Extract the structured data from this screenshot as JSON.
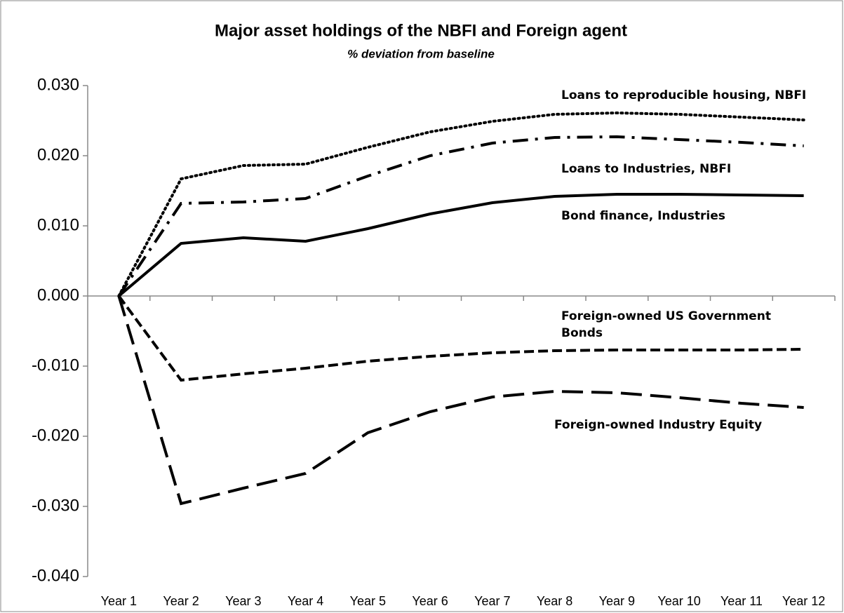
{
  "chart_data": {
    "type": "line",
    "title": "Major asset holdings of the NBFI and Foreign agent",
    "subtitle": "% deviation from baseline",
    "categories": [
      "Year 1",
      "Year 2",
      "Year 3",
      "Year 4",
      "Year 5",
      "Year 6",
      "Year 7",
      "Year 8",
      "Year 9",
      "Year 10",
      "Year 11",
      "Year 12"
    ],
    "series": [
      {
        "name": "Loans to reproducible housing, NBFI",
        "color": "#000000",
        "style": "dotted",
        "values": [
          0,
          0.0167,
          0.0186,
          0.0188,
          0.0212,
          0.0234,
          0.0249,
          0.0259,
          0.0261,
          0.0259,
          0.0255,
          0.0251
        ]
      },
      {
        "name": "Loans to Industries, NBFI",
        "color": "#000000",
        "style": "dash-dot",
        "values": [
          0,
          0.0132,
          0.0134,
          0.0139,
          0.0171,
          0.02,
          0.0218,
          0.0226,
          0.0227,
          0.0223,
          0.0219,
          0.0214
        ]
      },
      {
        "name": "Bond finance, Industries",
        "color": "#000000",
        "style": "solid",
        "values": [
          0,
          0.0075,
          0.0083,
          0.0078,
          0.0096,
          0.0117,
          0.0133,
          0.0142,
          0.0145,
          0.0145,
          0.0144,
          0.0143
        ]
      },
      {
        "name": "Foreign-owned US Government Bonds",
        "color": "#000000",
        "style": "short-dash",
        "values": [
          0,
          -0.012,
          -0.0111,
          -0.0103,
          -0.0093,
          -0.0086,
          -0.0081,
          -0.0078,
          -0.0077,
          -0.0077,
          -0.0077,
          -0.0076
        ]
      },
      {
        "name": "Foreign-owned Industry Equity",
        "color": "#000000",
        "style": "long-dash",
        "values": [
          0,
          -0.0296,
          -0.0274,
          -0.0253,
          -0.0195,
          -0.0165,
          -0.0144,
          -0.0136,
          -0.0138,
          -0.0145,
          -0.0153,
          -0.0159
        ]
      }
    ],
    "ylim": [
      -0.04,
      0.03
    ],
    "yticks": [
      {
        "value": -0.04,
        "label": "-0.040"
      },
      {
        "value": -0.03,
        "label": "-0.030"
      },
      {
        "value": -0.02,
        "label": "-0.020"
      },
      {
        "value": -0.01,
        "label": "-0.010"
      },
      {
        "value": 0,
        "label": "0.000"
      },
      {
        "value": 0.01,
        "label": "0.010"
      },
      {
        "value": 0.02,
        "label": "0.020"
      },
      {
        "value": 0.03,
        "label": "0.030"
      }
    ],
    "grid": false
  }
}
